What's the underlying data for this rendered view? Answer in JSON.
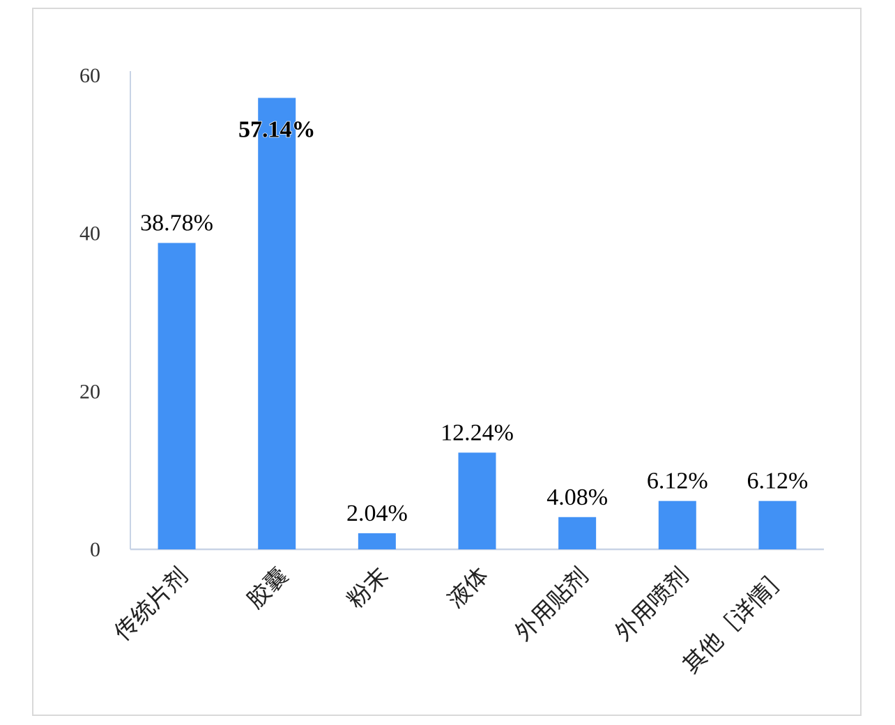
{
  "chart_data": {
    "type": "bar",
    "categories": [
      "传统片剂",
      "胶囊",
      "粉末",
      "液体",
      "外用贴剂",
      "外用喷剂",
      "其他［详情］"
    ],
    "values": [
      38.78,
      57.14,
      2.04,
      12.24,
      4.08,
      6.12,
      6.12
    ],
    "data_labels": [
      "38.78%",
      "57.14%",
      "2.04%",
      "12.24%",
      "4.08%",
      "6.12%",
      "6.12%"
    ],
    "y_ticks": [
      "0",
      "20",
      "40",
      "60"
    ],
    "ylim": [
      0,
      60
    ],
    "title": "",
    "xlabel": "",
    "ylabel": "",
    "grid": false,
    "bar_color": "#4191f5",
    "axis_color": "#c8d3e6"
  }
}
